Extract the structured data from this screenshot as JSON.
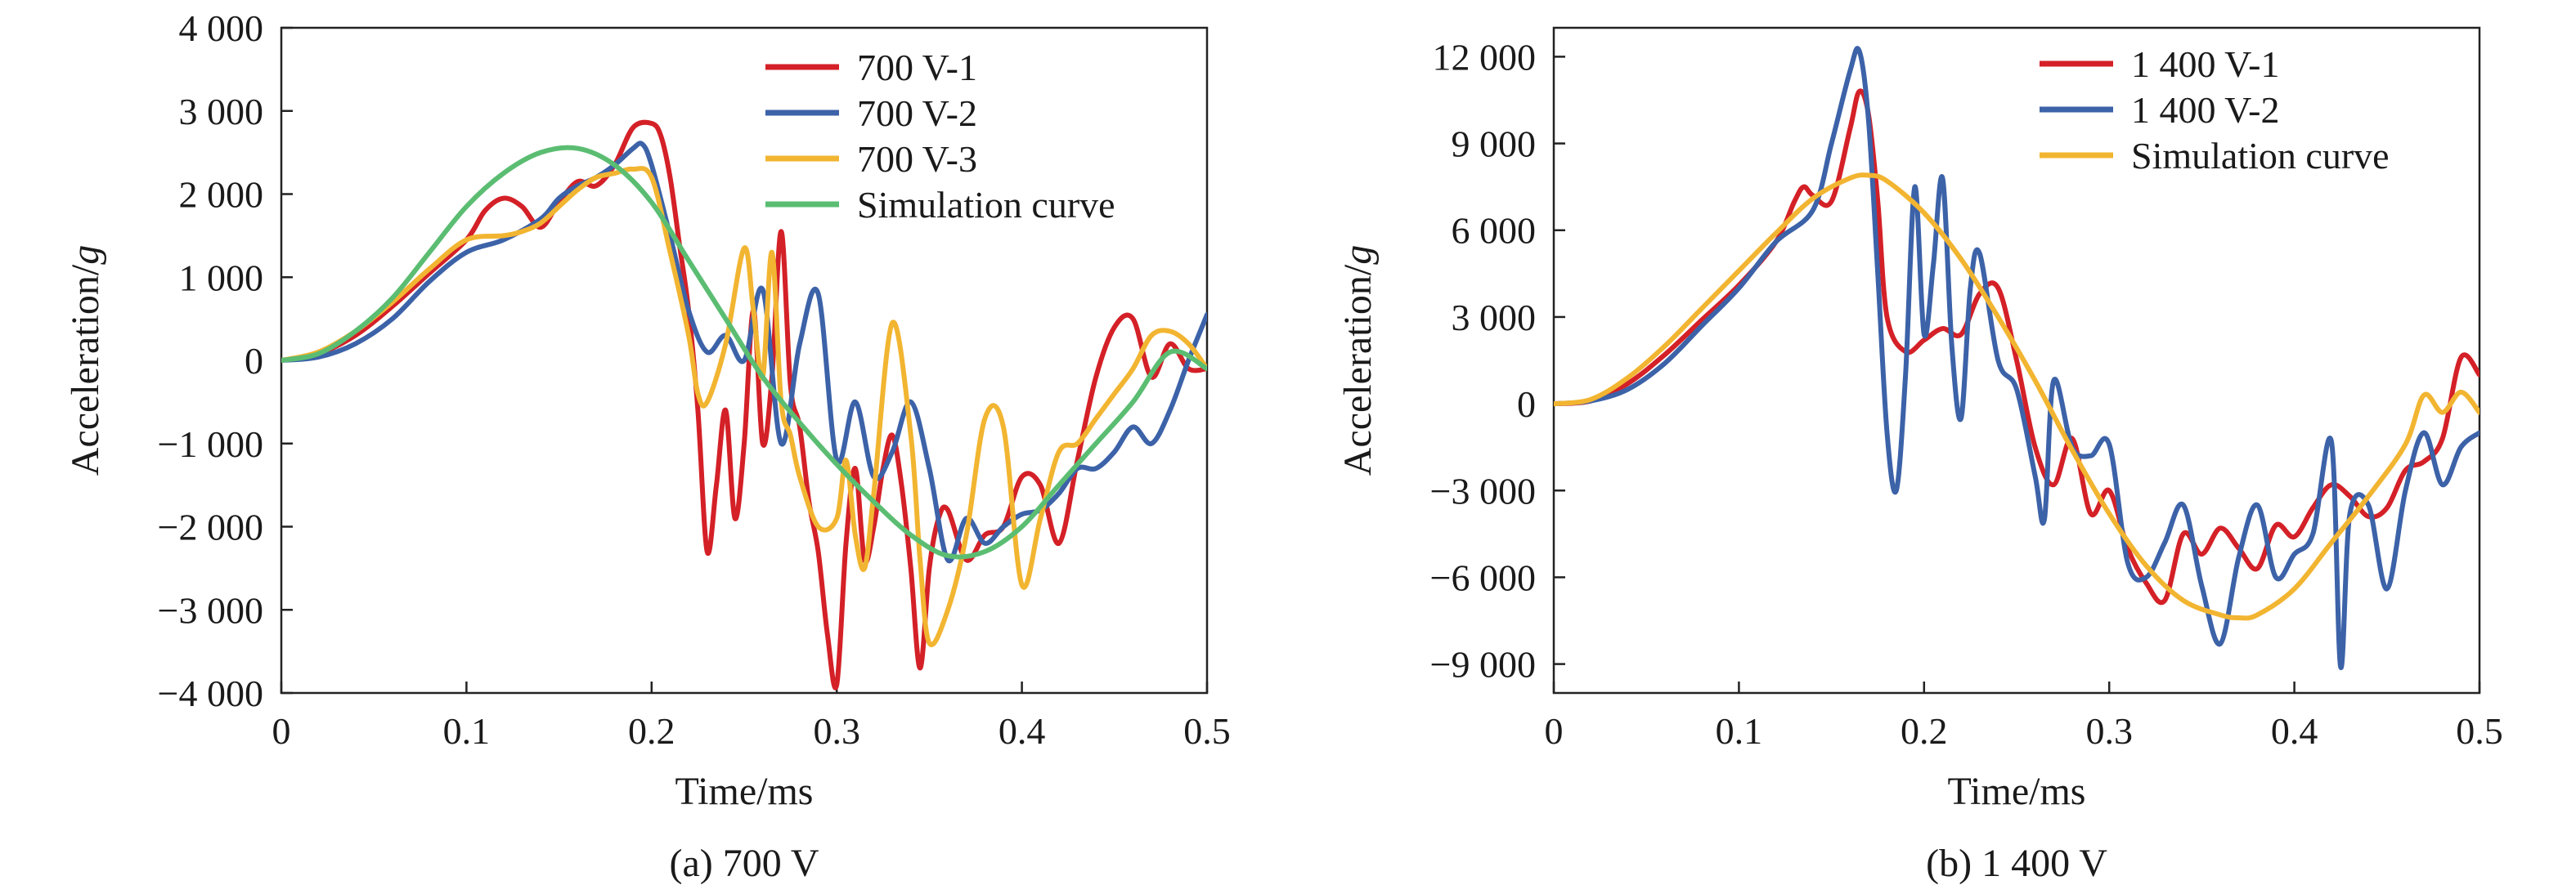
{
  "chart_data": [
    {
      "type": "line",
      "caption": "(a) 700 V",
      "xlabel": "Time/ms",
      "ylabel_main": "Acceleration/",
      "ylabel_unit": "g",
      "xlim": [
        0,
        0.5
      ],
      "ylim": [
        -4000,
        4000
      ],
      "xticks": [
        0,
        0.1,
        0.2,
        0.3,
        0.4,
        0.5
      ],
      "xtick_labels": [
        "0",
        "0.1",
        "0.2",
        "0.3",
        "0.4",
        "0.5"
      ],
      "yticks": [
        4000,
        3000,
        2000,
        1000,
        0,
        -1000,
        -2000,
        -3000,
        -4000
      ],
      "ytick_labels": [
        "4 000",
        "3 000",
        "2 000",
        "1 000",
        "0",
        "−1 000",
        "−2 000",
        "−3 000",
        "−4 000"
      ],
      "grid": false,
      "legend_position": "top-right",
      "series": [
        {
          "name": "700 V-1",
          "color": "#d42027",
          "x": [
            0,
            0.02,
            0.04,
            0.06,
            0.08,
            0.1,
            0.11,
            0.12,
            0.13,
            0.14,
            0.15,
            0.16,
            0.17,
            0.18,
            0.19,
            0.2,
            0.205,
            0.21,
            0.215,
            0.22,
            0.225,
            0.23,
            0.235,
            0.24,
            0.245,
            0.25,
            0.255,
            0.26,
            0.265,
            0.27,
            0.275,
            0.28,
            0.285,
            0.29,
            0.295,
            0.3,
            0.305,
            0.31,
            0.315,
            0.32,
            0.325,
            0.33,
            0.335,
            0.34,
            0.345,
            0.35,
            0.355,
            0.36,
            0.37,
            0.38,
            0.39,
            0.4,
            0.41,
            0.42,
            0.43,
            0.44,
            0.45,
            0.46,
            0.47,
            0.48,
            0.49,
            0.5
          ],
          "y": [
            0,
            80,
            300,
            650,
            1050,
            1450,
            1800,
            1950,
            1850,
            1600,
            1900,
            2150,
            2100,
            2350,
            2800,
            2850,
            2700,
            2200,
            1400,
            600,
            -600,
            -2300,
            -1500,
            -600,
            -1900,
            -1000,
            600,
            -1000,
            -200,
            1550,
            -300,
            -800,
            -1700,
            -2300,
            -3300,
            -3900,
            -2200,
            -1300,
            -2400,
            -2000,
            -1300,
            -900,
            -1500,
            -2500,
            -3700,
            -2500,
            -1900,
            -1800,
            -2400,
            -2100,
            -2000,
            -1400,
            -1500,
            -2200,
            -1200,
            -200,
            400,
            500,
            -200,
            200,
            -100,
            -100
          ]
        },
        {
          "name": "700 V-2",
          "color": "#3c62a8",
          "x": [
            0,
            0.02,
            0.04,
            0.06,
            0.08,
            0.1,
            0.12,
            0.14,
            0.15,
            0.16,
            0.17,
            0.18,
            0.19,
            0.195,
            0.2,
            0.21,
            0.22,
            0.23,
            0.24,
            0.25,
            0.26,
            0.27,
            0.28,
            0.29,
            0.3,
            0.31,
            0.32,
            0.33,
            0.34,
            0.35,
            0.36,
            0.37,
            0.38,
            0.39,
            0.4,
            0.41,
            0.42,
            0.43,
            0.44,
            0.45,
            0.46,
            0.47,
            0.48,
            0.49,
            0.5
          ],
          "y": [
            0,
            40,
            200,
            500,
            950,
            1300,
            1450,
            1700,
            1950,
            2100,
            2200,
            2350,
            2550,
            2600,
            2350,
            1500,
            600,
            100,
            300,
            0,
            850,
            -1000,
            200,
            800,
            -1200,
            -500,
            -1400,
            -1100,
            -500,
            -1300,
            -2400,
            -1900,
            -2200,
            -2000,
            -1850,
            -1800,
            -1600,
            -1300,
            -1300,
            -1100,
            -800,
            -1000,
            -600,
            0,
            550
          ]
        },
        {
          "name": "700 V-3",
          "color": "#f2b531",
          "x": [
            0,
            0.02,
            0.04,
            0.06,
            0.08,
            0.1,
            0.12,
            0.13,
            0.14,
            0.15,
            0.16,
            0.17,
            0.18,
            0.19,
            0.2,
            0.21,
            0.22,
            0.225,
            0.23,
            0.24,
            0.25,
            0.255,
            0.26,
            0.265,
            0.27,
            0.275,
            0.28,
            0.29,
            0.3,
            0.305,
            0.31,
            0.315,
            0.32,
            0.33,
            0.34,
            0.345,
            0.35,
            0.36,
            0.37,
            0.38,
            0.39,
            0.4,
            0.41,
            0.42,
            0.43,
            0.44,
            0.45,
            0.46,
            0.47,
            0.48,
            0.49,
            0.5
          ],
          "y": [
            0,
            100,
            350,
            700,
            1100,
            1450,
            1500,
            1550,
            1650,
            1850,
            2050,
            2200,
            2250,
            2300,
            2200,
            1300,
            300,
            -400,
            -500,
            200,
            1350,
            600,
            -200,
            1300,
            -500,
            -900,
            -1400,
            -2000,
            -1900,
            -1200,
            -2100,
            -2500,
            -1600,
            450,
            -900,
            -2400,
            -3400,
            -3000,
            -2100,
            -700,
            -800,
            -2700,
            -1900,
            -1100,
            -1000,
            -700,
            -400,
            -100,
            300,
            350,
            200,
            -100
          ]
        },
        {
          "name": "Simulation curve",
          "color": "#5bbd72",
          "x": [
            0,
            0.02,
            0.04,
            0.06,
            0.08,
            0.1,
            0.12,
            0.14,
            0.16,
            0.18,
            0.2,
            0.22,
            0.24,
            0.26,
            0.28,
            0.3,
            0.32,
            0.34,
            0.36,
            0.38,
            0.4,
            0.42,
            0.44,
            0.46,
            0.48,
            0.5
          ],
          "y": [
            0,
            80,
            350,
            750,
            1300,
            1850,
            2250,
            2500,
            2550,
            2350,
            1900,
            1200,
            500,
            -200,
            -750,
            -1250,
            -1700,
            -2100,
            -2350,
            -2300,
            -2000,
            -1500,
            -1000,
            -500,
            100,
            -100
          ]
        }
      ]
    },
    {
      "type": "line",
      "caption": "(b) 1 400 V",
      "xlabel": "Time/ms",
      "ylabel_main": "Acceleration/",
      "ylabel_unit": "g",
      "xlim": [
        0,
        0.5
      ],
      "ylim": [
        -10000,
        13000
      ],
      "xticks": [
        0,
        0.1,
        0.2,
        0.3,
        0.4,
        0.5
      ],
      "xtick_labels": [
        "0",
        "0.1",
        "0.2",
        "0.3",
        "0.4",
        "0.5"
      ],
      "yticks": [
        12000,
        9000,
        6000,
        3000,
        0,
        -3000,
        -6000,
        -9000
      ],
      "ytick_labels": [
        "12 000",
        "9 000",
        "6 000",
        "3 000",
        "0",
        "−3 000",
        "−6 000",
        "−9 000"
      ],
      "grid": false,
      "legend_position": "top-right",
      "series": [
        {
          "name": "1 400 V-1",
          "color": "#d42027",
          "x": [
            0,
            0.02,
            0.04,
            0.06,
            0.08,
            0.1,
            0.12,
            0.13,
            0.135,
            0.14,
            0.15,
            0.16,
            0.165,
            0.17,
            0.175,
            0.18,
            0.19,
            0.2,
            0.21,
            0.22,
            0.23,
            0.24,
            0.25,
            0.26,
            0.27,
            0.28,
            0.29,
            0.3,
            0.31,
            0.32,
            0.33,
            0.34,
            0.35,
            0.36,
            0.37,
            0.38,
            0.39,
            0.4,
            0.41,
            0.42,
            0.43,
            0.44,
            0.45,
            0.46,
            0.47,
            0.48,
            0.49,
            0.5
          ],
          "y": [
            0,
            100,
            700,
            1700,
            2900,
            4100,
            5600,
            7000,
            7500,
            7200,
            7000,
            9500,
            10800,
            10000,
            7000,
            3000,
            1800,
            2200,
            2600,
            2400,
            3800,
            4000,
            1500,
            -1500,
            -2800,
            -1200,
            -3800,
            -3000,
            -5000,
            -6200,
            -6800,
            -4500,
            -5200,
            -4300,
            -5000,
            -5700,
            -4200,
            -4600,
            -3600,
            -2800,
            -3200,
            -3900,
            -3600,
            -2300,
            -2000,
            -1200,
            1600,
            1000
          ]
        },
        {
          "name": "1 400 V-2",
          "color": "#3c62a8",
          "x": [
            0,
            0.02,
            0.04,
            0.06,
            0.08,
            0.1,
            0.12,
            0.14,
            0.15,
            0.16,
            0.165,
            0.17,
            0.175,
            0.18,
            0.185,
            0.19,
            0.195,
            0.2,
            0.205,
            0.21,
            0.215,
            0.22,
            0.225,
            0.23,
            0.24,
            0.25,
            0.26,
            0.265,
            0.27,
            0.28,
            0.29,
            0.3,
            0.31,
            0.32,
            0.33,
            0.34,
            0.35,
            0.36,
            0.37,
            0.38,
            0.39,
            0.4,
            0.41,
            0.42,
            0.425,
            0.43,
            0.44,
            0.45,
            0.46,
            0.47,
            0.48,
            0.49,
            0.5
          ],
          "y": [
            0,
            100,
            500,
            1400,
            2700,
            4000,
            5600,
            6700,
            9000,
            11500,
            12200,
            9800,
            4500,
            -1000,
            -3000,
            1000,
            7500,
            2400,
            4800,
            7800,
            2000,
            -500,
            4000,
            5200,
            1500,
            500,
            -2500,
            -4000,
            800,
            -1500,
            -1800,
            -1400,
            -5500,
            -6000,
            -4800,
            -3500,
            -6300,
            -8300,
            -5300,
            -3500,
            -6000,
            -5200,
            -4500,
            -1300,
            -9100,
            -3800,
            -3500,
            -6400,
            -3000,
            -1000,
            -2800,
            -1500,
            -1000
          ]
        },
        {
          "name": "Simulation curve",
          "color": "#f2b531",
          "x": [
            0,
            0.02,
            0.04,
            0.06,
            0.08,
            0.1,
            0.12,
            0.14,
            0.16,
            0.17,
            0.18,
            0.2,
            0.22,
            0.24,
            0.26,
            0.28,
            0.3,
            0.32,
            0.34,
            0.36,
            0.37,
            0.38,
            0.4,
            0.42,
            0.44,
            0.46,
            0.47,
            0.48,
            0.49,
            0.5
          ],
          "y": [
            0,
            150,
            900,
            2000,
            3300,
            4600,
            5900,
            7100,
            7800,
            7900,
            7700,
            6600,
            5000,
            3000,
            800,
            -1600,
            -3800,
            -5600,
            -6800,
            -7300,
            -7400,
            -7300,
            -6400,
            -4800,
            -3200,
            -1400,
            300,
            -300,
            400,
            -300
          ]
        }
      ]
    }
  ]
}
